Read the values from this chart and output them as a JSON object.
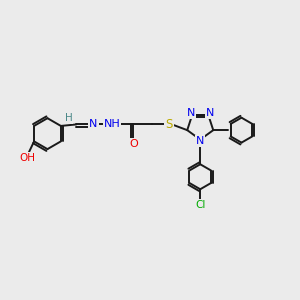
{
  "background_color": "#ebebeb",
  "bond_color": "#1a1a1a",
  "atom_colors": {
    "N": "#0000ee",
    "O": "#ee0000",
    "S": "#bbaa00",
    "Cl": "#00aa00",
    "C": "#1a1a1a",
    "H": "#4a8888"
  },
  "figsize": [
    3.0,
    3.0
  ],
  "dpi": 100
}
